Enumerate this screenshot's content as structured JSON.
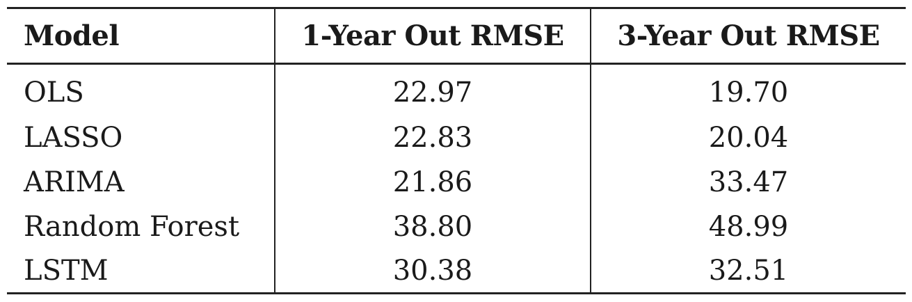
{
  "table": {
    "headers": [
      "Model",
      "1-Year Out RMSE",
      "3-Year Out RMSE"
    ],
    "rows": [
      {
        "model": "OLS",
        "rmse_1yr": "22.97",
        "rmse_3yr": "19.70"
      },
      {
        "model": "LASSO",
        "rmse_1yr": "22.83",
        "rmse_3yr": "20.04"
      },
      {
        "model": "ARIMA",
        "rmse_1yr": "21.86",
        "rmse_3yr": "33.47"
      },
      {
        "model": "Random Forest",
        "rmse_1yr": "38.80",
        "rmse_3yr": "48.99"
      },
      {
        "model": "LSTM",
        "rmse_1yr": "30.38",
        "rmse_3yr": "32.51"
      }
    ]
  }
}
